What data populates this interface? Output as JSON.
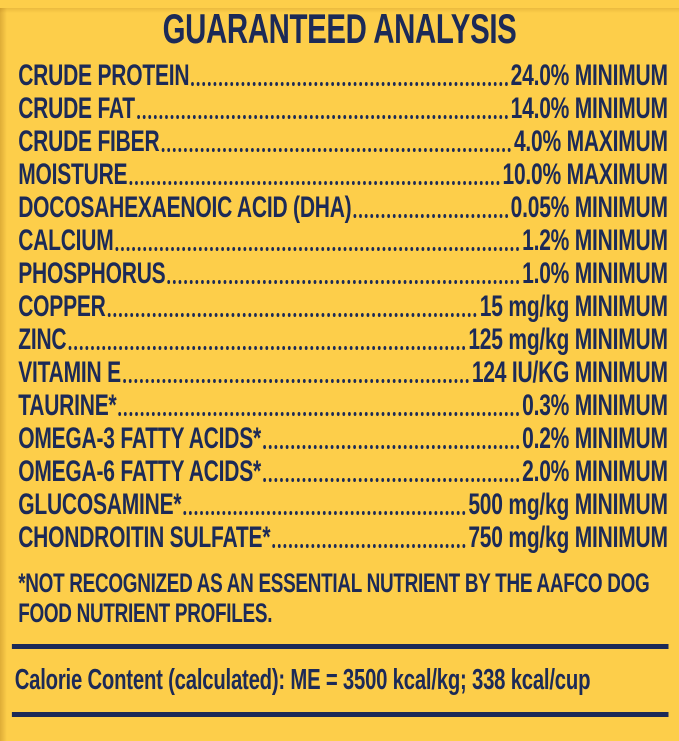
{
  "label": {
    "title": "GUARANTEED ANALYSIS",
    "nutrients": [
      {
        "name": "CRUDE PROTEIN",
        "value": "24.0% MINIMUM"
      },
      {
        "name": "CRUDE FAT",
        "value": "14.0% MINIMUM"
      },
      {
        "name": "CRUDE FIBER",
        "value": "4.0% MAXIMUM"
      },
      {
        "name": "MOISTURE",
        "value": "10.0% MAXIMUM"
      },
      {
        "name": "DOCOSAHEXAENOIC ACID (DHA)",
        "value": "0.05% MINIMUM"
      },
      {
        "name": "CALCIUM",
        "value": "1.2% MINIMUM"
      },
      {
        "name": "PHOSPHORUS",
        "value": "1.0% MINIMUM"
      },
      {
        "name": "COPPER",
        "value": "15 mg/kg MINIMUM"
      },
      {
        "name": "ZINC",
        "value": "125 mg/kg MINIMUM"
      },
      {
        "name": "VITAMIN E",
        "value": "124 IU/KG MINIMUM"
      },
      {
        "name": "TAURINE*",
        "value": "0.3% MINIMUM"
      },
      {
        "name": "OMEGA-3 FATTY ACIDS*",
        "value": "0.2% MINIMUM"
      },
      {
        "name": "OMEGA-6 FATTY ACIDS*",
        "value": "2.0% MINIMUM"
      },
      {
        "name": "GLUCOSAMINE*",
        "value": "500 mg/kg MINIMUM"
      },
      {
        "name": "CHONDROITIN SULFATE*",
        "value": "750 mg/kg MINIMUM"
      }
    ],
    "footnote": {
      "line1": "*NOT RECOGNIZED AS AN ESSENTIAL NUTRIENT BY THE AAFCO DOG",
      "line2": "FOOD NUTRIENT PROFILES."
    },
    "calorie": {
      "label": "Calorie Content (calculated):",
      "value": "ME = 3500 kcal/kg; 338 kcal/cup"
    },
    "colors": {
      "background": "#FDCE4A",
      "text": "#1C2A57"
    }
  }
}
